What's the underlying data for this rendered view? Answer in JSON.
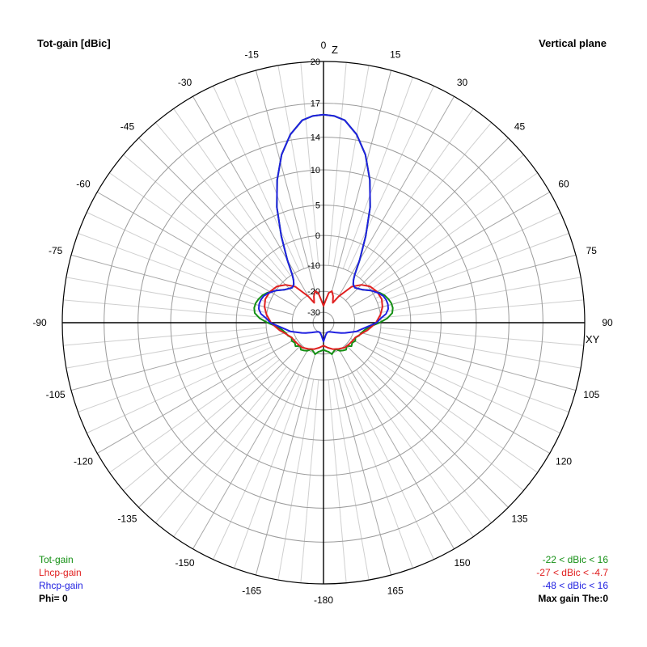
{
  "header": {
    "title_left": "Tot-gain [dBic]",
    "title_right": "Vertical plane"
  },
  "legend": {
    "items": [
      {
        "label": "Tot-gain",
        "color": "#159015"
      },
      {
        "label": "Lhcp-gain",
        "color": "#e02020"
      },
      {
        "label": "Rhcp-gain",
        "color": "#2020e0"
      }
    ],
    "phi": "Phi= 0"
  },
  "ranges": {
    "items": [
      {
        "text": "-22 < dBic < 16",
        "color": "#159015"
      },
      {
        "text": "-27 < dBic < -4.7",
        "color": "#e02020"
      },
      {
        "text": "-48 < dBic < 16",
        "color": "#2020e0"
      }
    ],
    "max_gain": "Max gain The:0"
  },
  "chart_data": {
    "type": "polar",
    "angle_labels": [
      "0",
      "15",
      "30",
      "45",
      "60",
      "75",
      "90",
      "105",
      "120",
      "135",
      "150",
      "165",
      "-180",
      "-165",
      "-150",
      "-135",
      "-120",
      "-105",
      "-90",
      "-75",
      "-60",
      "-45",
      "-30",
      "-15"
    ],
    "axis_names": {
      "top": "Z",
      "right": "XY"
    },
    "radial_ticks": [
      20,
      17,
      14,
      10,
      5,
      0,
      -10,
      -20,
      -30
    ],
    "radial_range": [
      -30,
      20
    ],
    "grid": true,
    "series": [
      {
        "name": "Tot-gain",
        "color": "#159015",
        "theta": [
          0,
          3,
          6,
          10,
          14,
          18,
          22,
          26,
          30,
          33,
          35,
          38,
          42,
          50,
          56,
          62,
          66,
          70,
          74,
          78,
          82,
          86,
          90,
          95,
          100,
          105,
          110,
          115,
          120,
          125,
          130,
          135,
          140,
          145,
          150,
          155,
          160,
          165,
          170,
          174,
          178,
          180
        ],
        "gain": [
          16,
          15.9,
          15.6,
          14.5,
          12.5,
          9.6,
          6,
          1.5,
          -5,
          -10,
          -12,
          -13.5,
          -14,
          -12.4,
          -10,
          -7.9,
          -6.8,
          -6.1,
          -5.6,
          -5.5,
          -6,
          -7.8,
          -10.5,
          -14.2,
          -16,
          -17,
          -17.5,
          -18.5,
          -18,
          -18.6,
          -18,
          -19.4,
          -18.5,
          -19,
          -19.6,
          -21,
          -20.5,
          -19.5,
          -20.8,
          -21.3,
          -21.8,
          -22
        ]
      },
      {
        "name": "Lhcp-gain",
        "color": "#e02020",
        "theta": [
          0,
          5,
          10,
          15,
          20,
          25,
          30,
          38,
          45,
          52,
          60,
          68,
          75,
          82,
          90,
          95,
          100,
          105,
          110,
          115,
          120,
          130,
          140,
          150,
          160,
          170,
          180
        ],
        "gain": [
          -27,
          -24.5,
          -20.5,
          -19.5,
          -21.5,
          -24.5,
          -20.5,
          -14.5,
          -11.5,
          -9.5,
          -8.5,
          -8.2,
          -8.8,
          -10,
          -11.9,
          -13.6,
          -15,
          -16.6,
          -17.7,
          -18.6,
          -18.8,
          -19.2,
          -19.5,
          -20.5,
          -21.5,
          -22.8,
          -24
        ]
      },
      {
        "name": "Rhcp-gain",
        "color": "#2020e0",
        "theta": [
          0,
          3,
          6,
          10,
          14,
          18,
          22,
          26,
          30,
          33,
          35,
          38,
          42,
          50,
          56,
          62,
          66,
          70,
          74,
          78,
          82,
          86,
          90,
          95,
          100,
          105,
          110,
          115,
          120,
          130,
          140,
          150,
          160,
          170,
          180
        ],
        "gain": [
          16,
          15.9,
          15.6,
          14.5,
          12.5,
          9.6,
          6,
          1.5,
          -5,
          -10,
          -12,
          -13.5,
          -14,
          -12.4,
          -10,
          -8.2,
          -7.3,
          -6.9,
          -6.8,
          -7.1,
          -8.1,
          -10.2,
          -11.6,
          -15,
          -17.3,
          -19,
          -21.5,
          -23.5,
          -25.2,
          -27.7,
          -29.2,
          -30,
          -30,
          -29,
          -26
        ]
      }
    ]
  }
}
